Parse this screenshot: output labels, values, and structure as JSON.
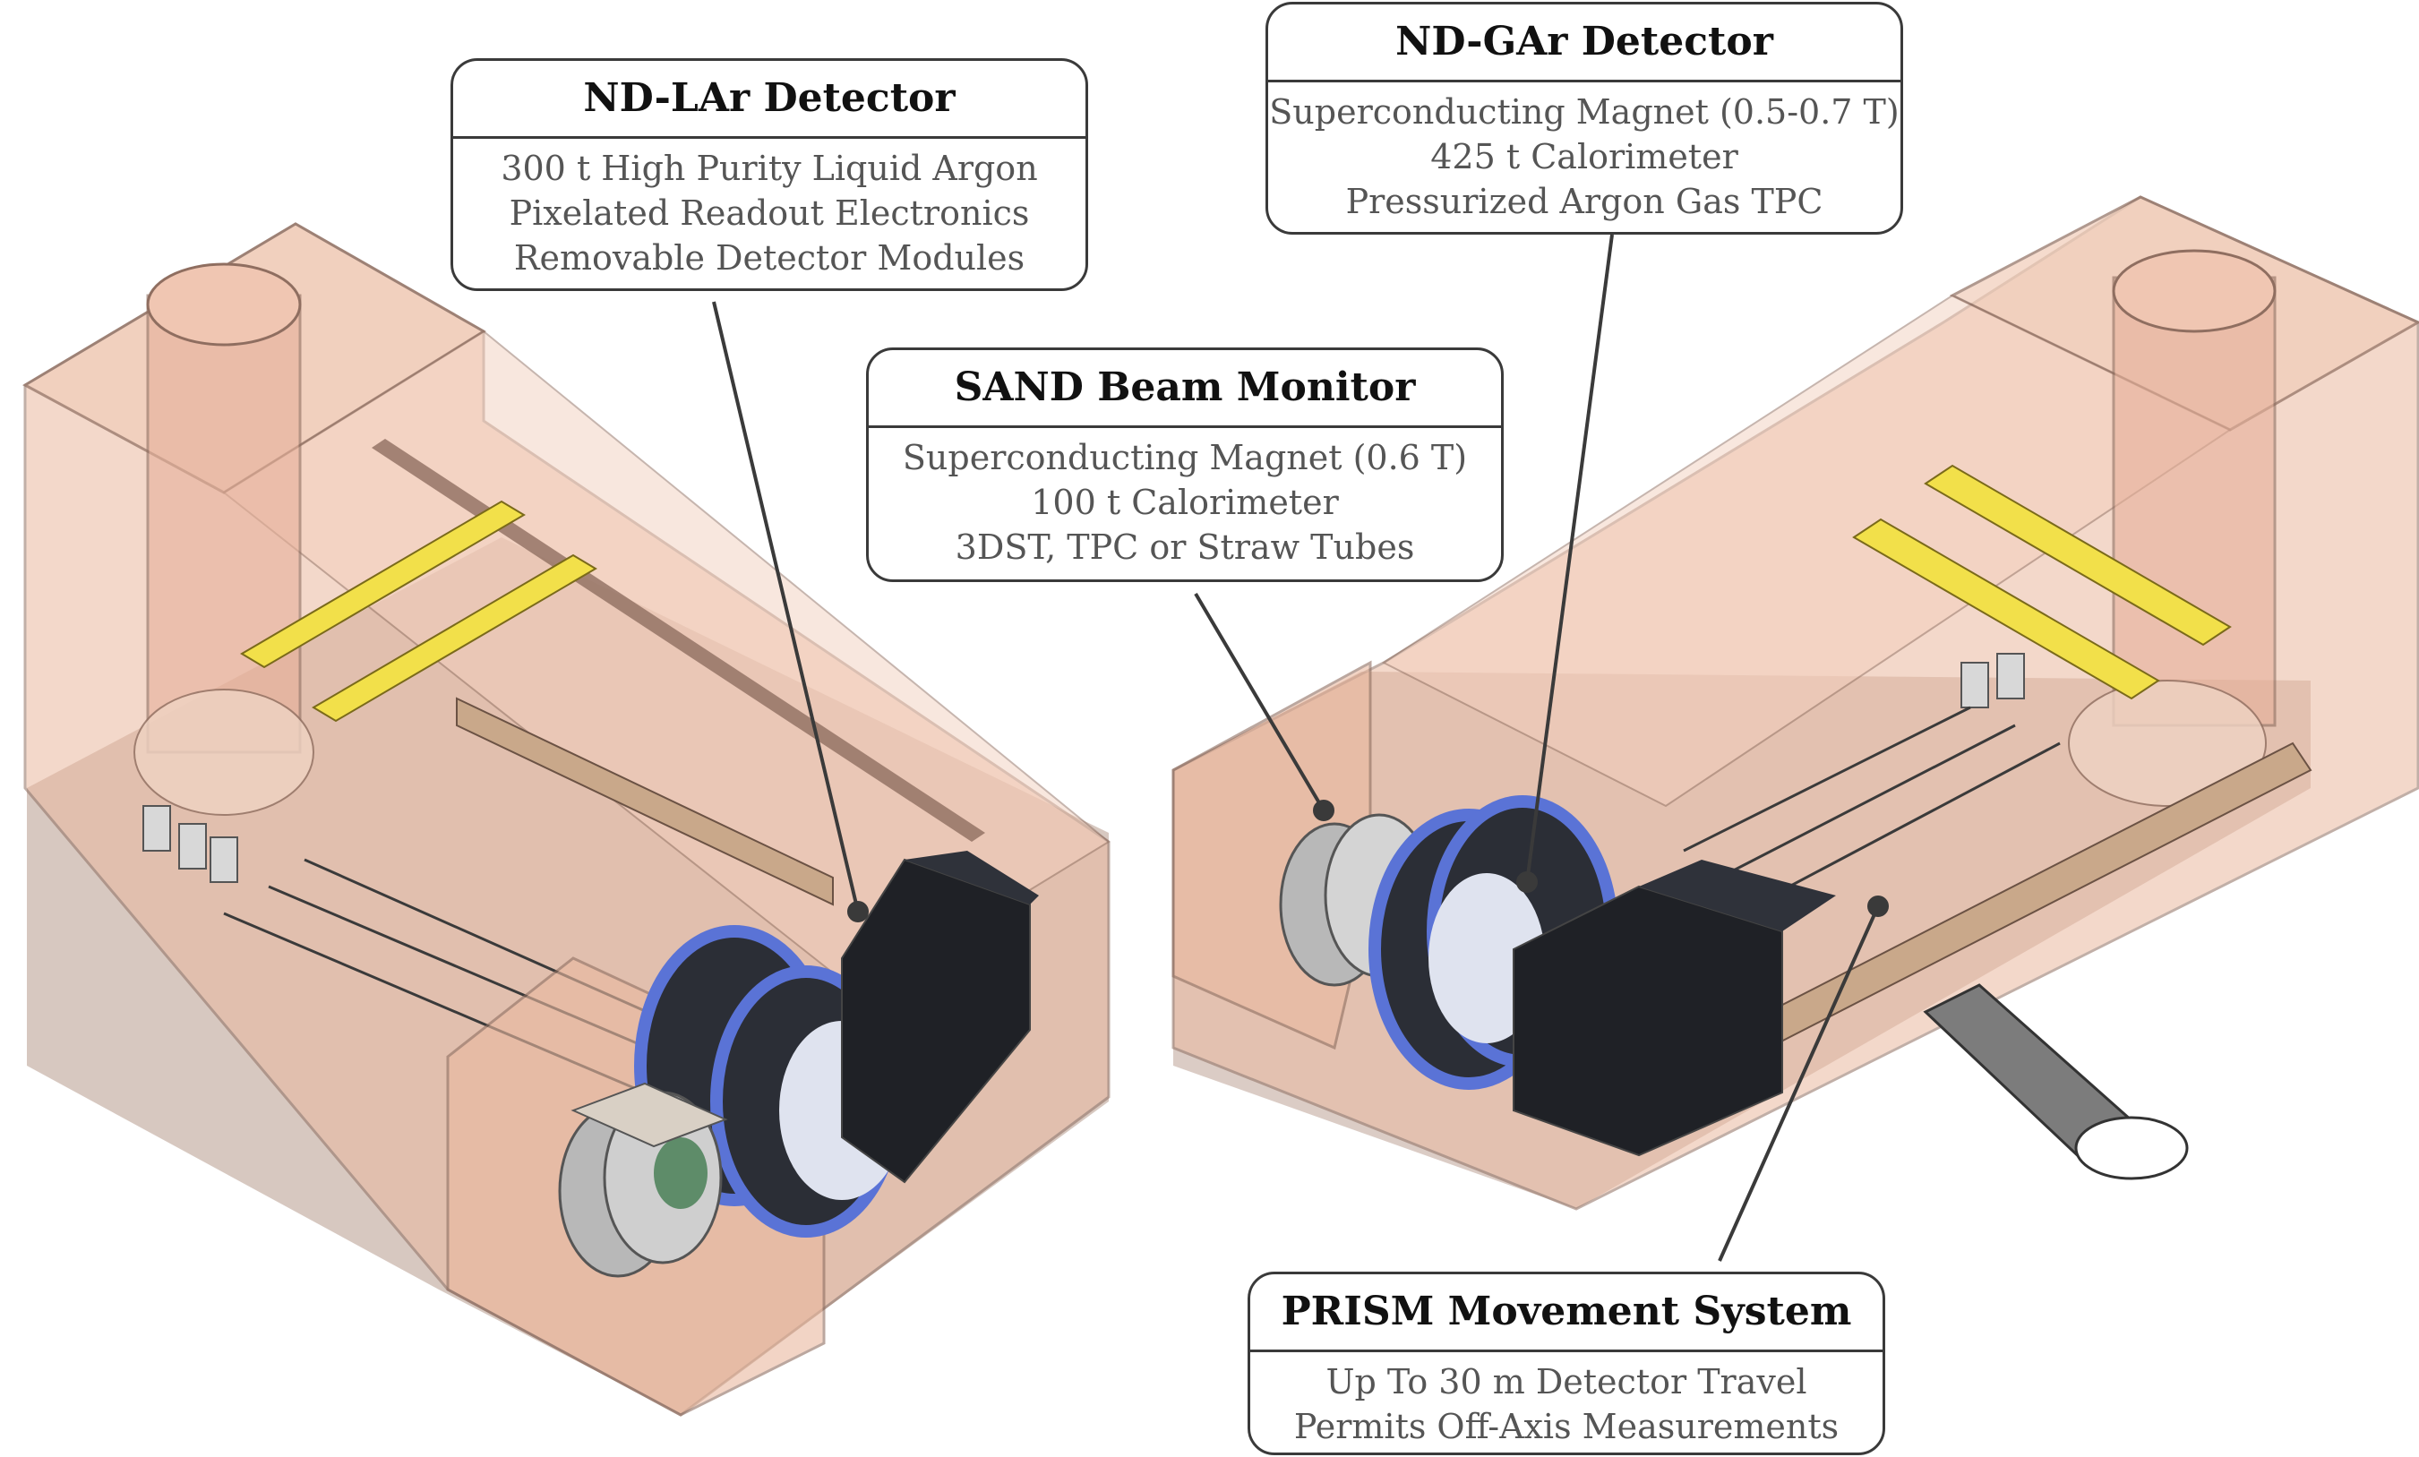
{
  "colors": {
    "hall_fill": "#eab9a0",
    "hall_edge": "#8f6e60",
    "floor": "#b79a8c",
    "crane": "#f2e04a",
    "detector_dark": "#1f2126",
    "detector_blue": "#5a73d6",
    "callout_border": "#3a3a3a",
    "text_title": "#111111",
    "text_body": "#555555"
  },
  "callouts": {
    "ndlar": {
      "title": "ND-LAr Detector",
      "lines": [
        "300 t High Purity Liquid Argon",
        "Pixelated Readout Electronics",
        "Removable Detector Modules"
      ]
    },
    "ndgar": {
      "title": "ND-GAr Detector",
      "lines": [
        "Superconducting Magnet (0.5-0.7 T)",
        "425 t Calorimeter",
        "Pressurized Argon Gas TPC"
      ]
    },
    "sand": {
      "title": "SAND Beam Monitor",
      "lines": [
        "Superconducting Magnet (0.6 T)",
        "100 t Calorimeter",
        "3DST, TPC or Straw Tubes"
      ]
    },
    "prism": {
      "title": "PRISM Movement System",
      "lines": [
        "Up To 30 m Detector Travel",
        "Permits Off-Axis Measurements"
      ]
    }
  }
}
